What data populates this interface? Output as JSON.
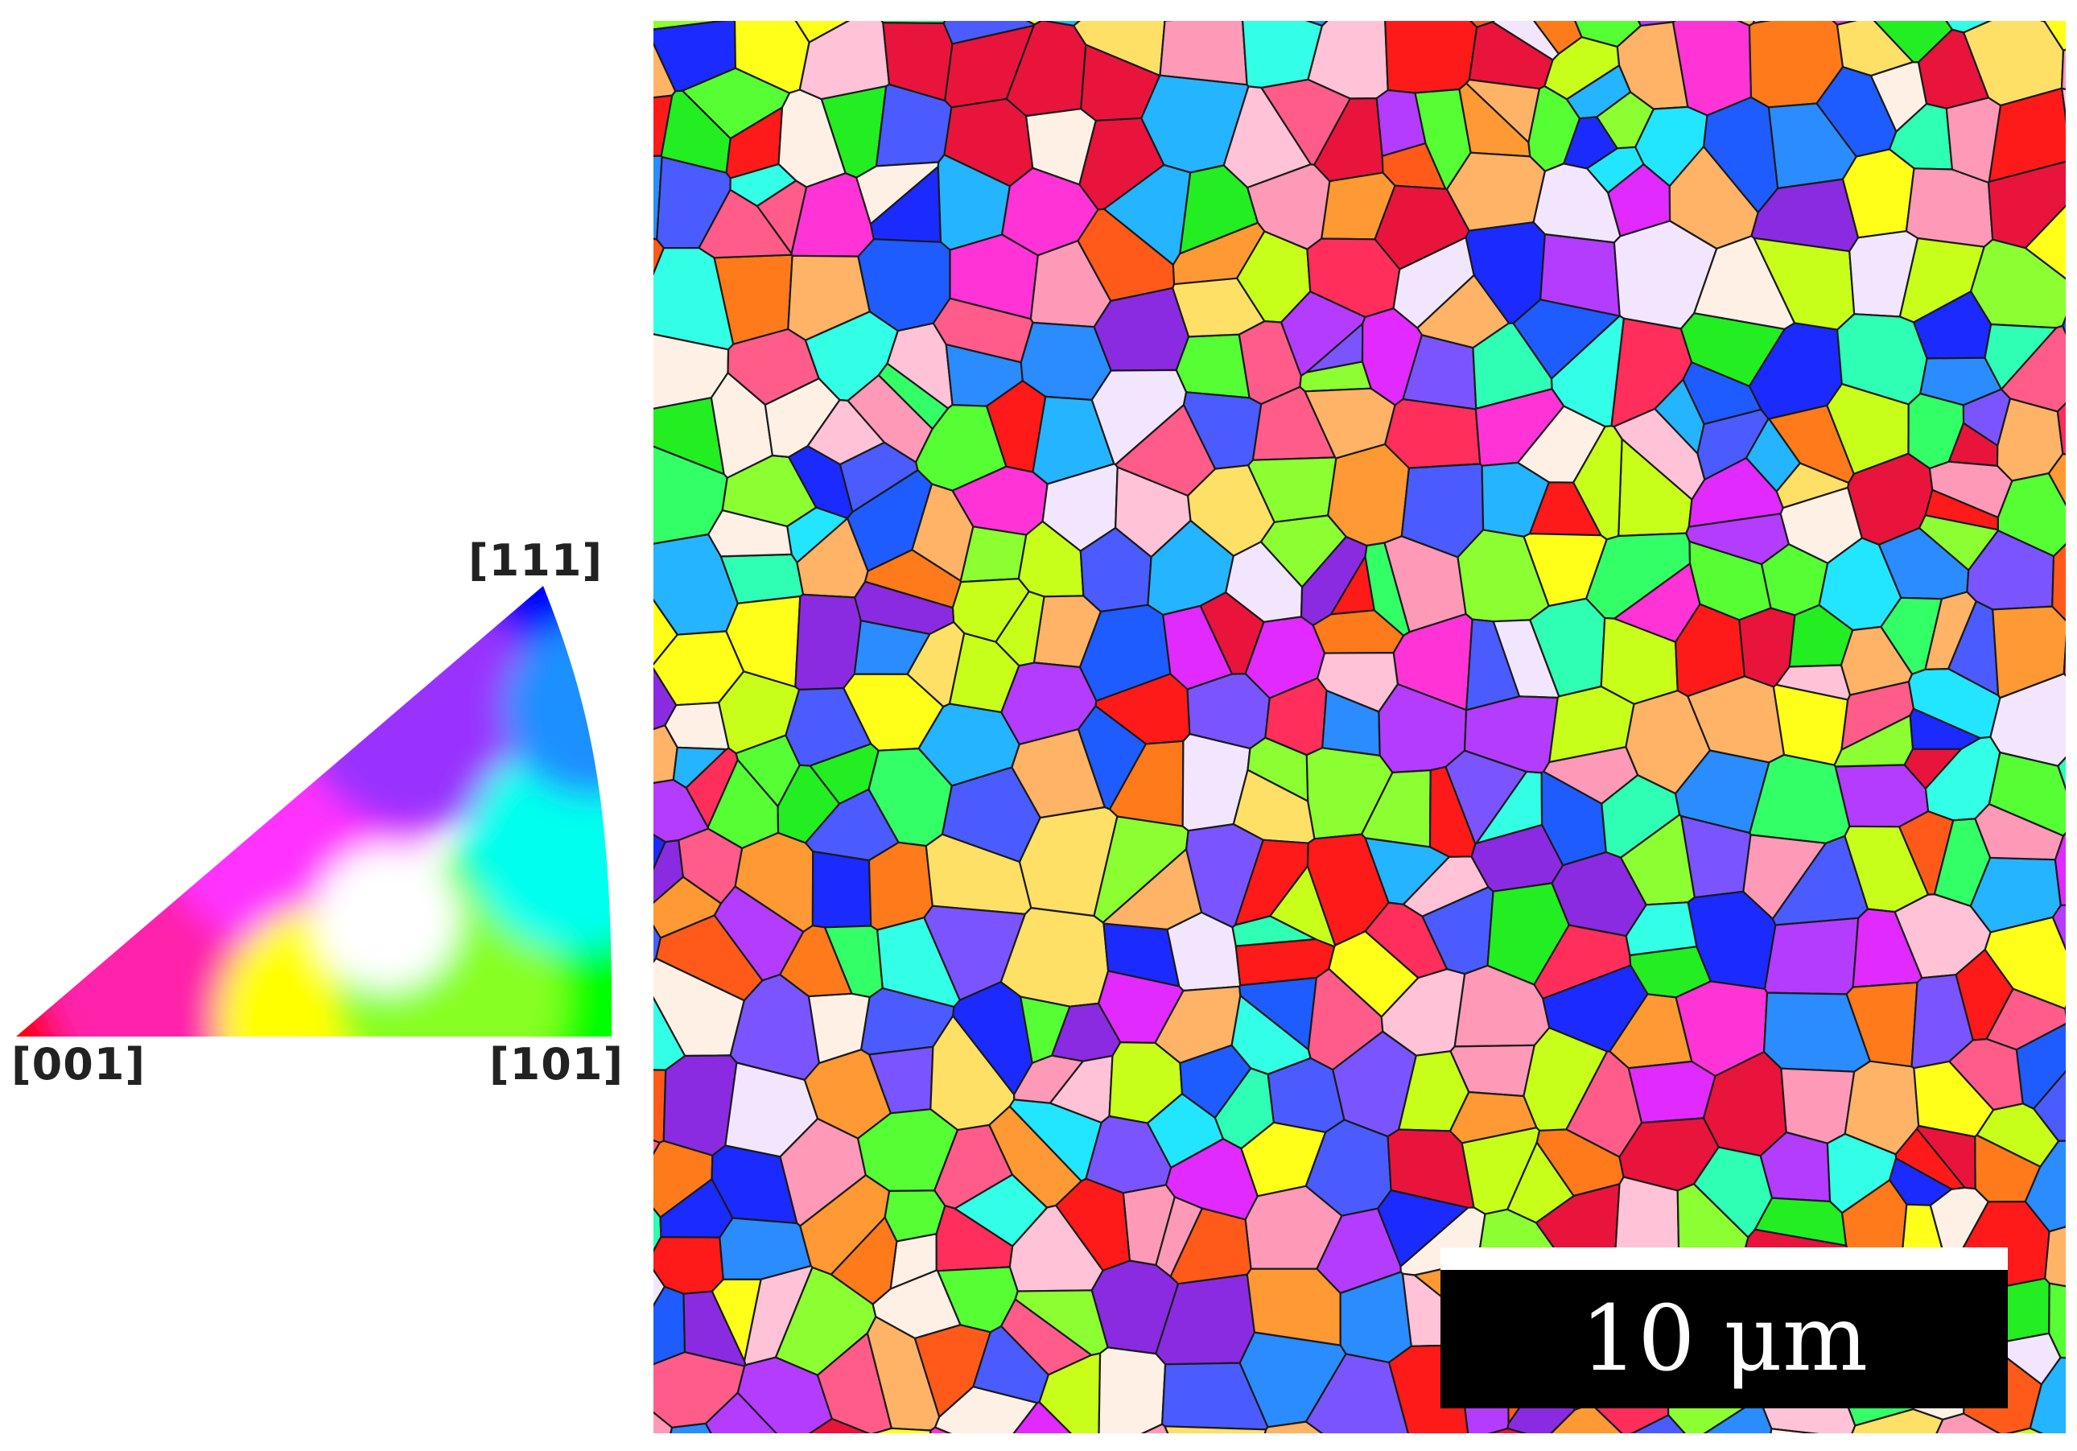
{
  "ipf_key": {
    "vertex_labels": {
      "top": "[111]",
      "bottom_left": "[001]",
      "bottom_right": "[101]"
    },
    "vertex_colors": {
      "001": "#ff0000",
      "101": "#00ff00",
      "111": "#0000ff"
    }
  },
  "map": {
    "palette": [
      "#ff1a1a",
      "#e8143c",
      "#ff2e5a",
      "#ff5c8a",
      "#ff99b8",
      "#ffc2d6",
      "#ff33d6",
      "#e02aff",
      "#b43cff",
      "#8a2be2",
      "#7a55ff",
      "#4a5cff",
      "#1b2bff",
      "#1e5cff",
      "#2a8cff",
      "#25b4ff",
      "#22e6ff",
      "#33ffe6",
      "#2effb4",
      "#33ff66",
      "#22ee22",
      "#55ff33",
      "#8cff33",
      "#c8ff1a",
      "#ffff1a",
      "#ffe066",
      "#ffb366",
      "#ff9933",
      "#ff7a1a",
      "#ff5a1a",
      "#fff0e6",
      "#f2e6ff"
    ],
    "boundary_color": "#1a1a1a"
  },
  "scale_bar": {
    "label": "10 μm"
  }
}
